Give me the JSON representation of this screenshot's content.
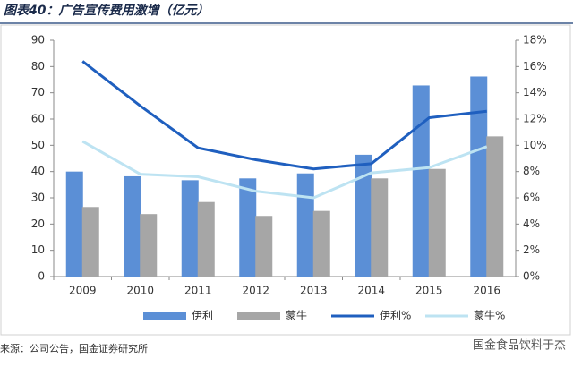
{
  "chart_data": {
    "type": "bar-line",
    "title": "图表40：广告宣传费用激增（亿元）",
    "source": "来源：公司公告，国金证券研究所",
    "watermark": "国金食品饮料于杰",
    "categories": [
      "2009",
      "2010",
      "2011",
      "2012",
      "2013",
      "2014",
      "2015",
      "2016"
    ],
    "series": [
      {
        "name": "伊利",
        "type": "bar",
        "color": "#5b8fd6",
        "values": [
          40,
          38.2,
          36.7,
          37.4,
          39.3,
          46.4,
          72.8,
          76.2
        ]
      },
      {
        "name": "蒙牛",
        "type": "bar",
        "color": "#a6a6a6",
        "values": [
          26.5,
          23.8,
          28.4,
          23.1,
          25,
          37.4,
          41,
          53.4
        ]
      },
      {
        "name": "伊利%",
        "type": "line",
        "axis": "y2",
        "color": "#1f5fbf",
        "values": [
          16.4,
          13.0,
          9.8,
          8.9,
          8.2,
          8.6,
          12.1,
          12.6
        ]
      },
      {
        "name": "蒙牛%",
        "type": "line",
        "axis": "y2",
        "color": "#bde3f2",
        "values": [
          10.3,
          7.8,
          7.6,
          6.5,
          6.0,
          7.9,
          8.3,
          9.9
        ]
      }
    ],
    "ylim": [
      0,
      90
    ],
    "yticks": [
      0,
      10,
      20,
      30,
      40,
      50,
      60,
      70,
      80,
      90
    ],
    "y2lim": [
      0,
      18
    ],
    "y2ticks": [
      {
        "value": 0,
        "label": "0%"
      },
      {
        "value": 2,
        "label": "2%"
      },
      {
        "value": 4,
        "label": "4%"
      },
      {
        "value": 6,
        "label": "6%"
      },
      {
        "value": 8,
        "label": "8%"
      },
      {
        "value": 10,
        "label": "10%"
      },
      {
        "value": 12,
        "label": "12%"
      },
      {
        "value": 14,
        "label": "14%"
      },
      {
        "value": 16,
        "label": "16%"
      },
      {
        "value": 18,
        "label": "18%"
      }
    ],
    "grid": false
  }
}
